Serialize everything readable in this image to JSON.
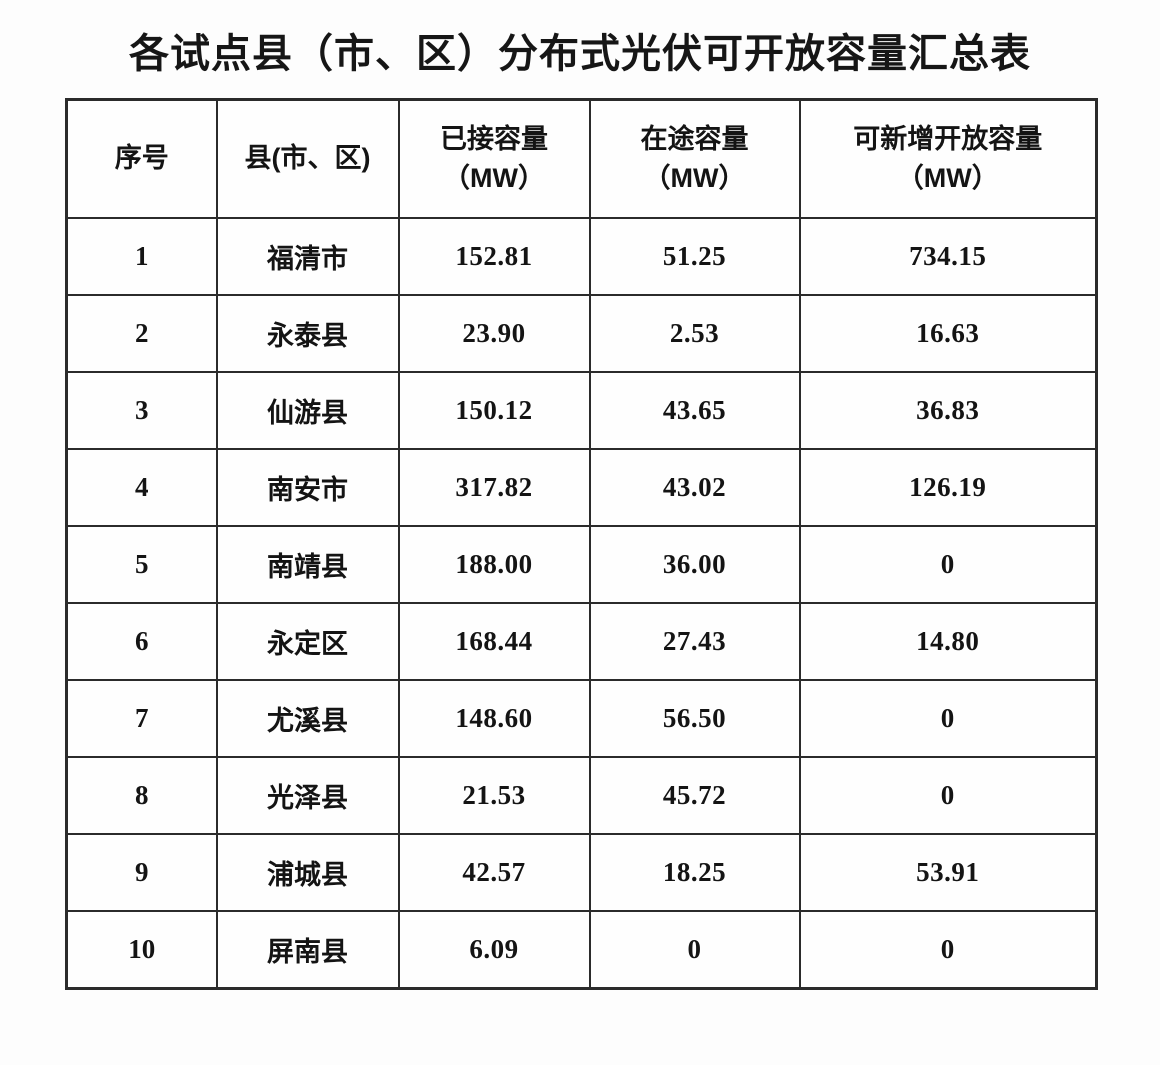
{
  "title": "各试点县（市、区）分布式光伏可开放容量汇总表",
  "table": {
    "header": [
      "序号",
      "县(市、区)",
      "已接容量\n（MW）",
      "在途容量\n（MW）",
      "可新增开放容量\n（MW）"
    ]
  },
  "chart_data": {
    "type": "table",
    "title": "各试点县（市、区）分布式光伏可开放容量汇总表",
    "columns": [
      "序号",
      "县(市、区)",
      "已接容量（MW）",
      "在途容量（MW）",
      "可新增开放容量（MW）"
    ],
    "rows": [
      [
        "1",
        "福清市",
        "152.81",
        "51.25",
        "734.15"
      ],
      [
        "2",
        "永泰县",
        "23.90",
        "2.53",
        "16.63"
      ],
      [
        "3",
        "仙游县",
        "150.12",
        "43.65",
        "36.83"
      ],
      [
        "4",
        "南安市",
        "317.82",
        "43.02",
        "126.19"
      ],
      [
        "5",
        "南靖县",
        "188.00",
        "36.00",
        "0"
      ],
      [
        "6",
        "永定区",
        "168.44",
        "27.43",
        "14.80"
      ],
      [
        "7",
        "尤溪县",
        "148.60",
        "56.50",
        "0"
      ],
      [
        "8",
        "光泽县",
        "21.53",
        "45.72",
        "0"
      ],
      [
        "9",
        "浦城县",
        "42.57",
        "18.25",
        "53.91"
      ],
      [
        "10",
        "屏南县",
        "6.09",
        "0",
        "0"
      ]
    ]
  },
  "colors": {
    "border": "#2b2b2b",
    "text": "#141414",
    "background": "#fdfdfd"
  }
}
